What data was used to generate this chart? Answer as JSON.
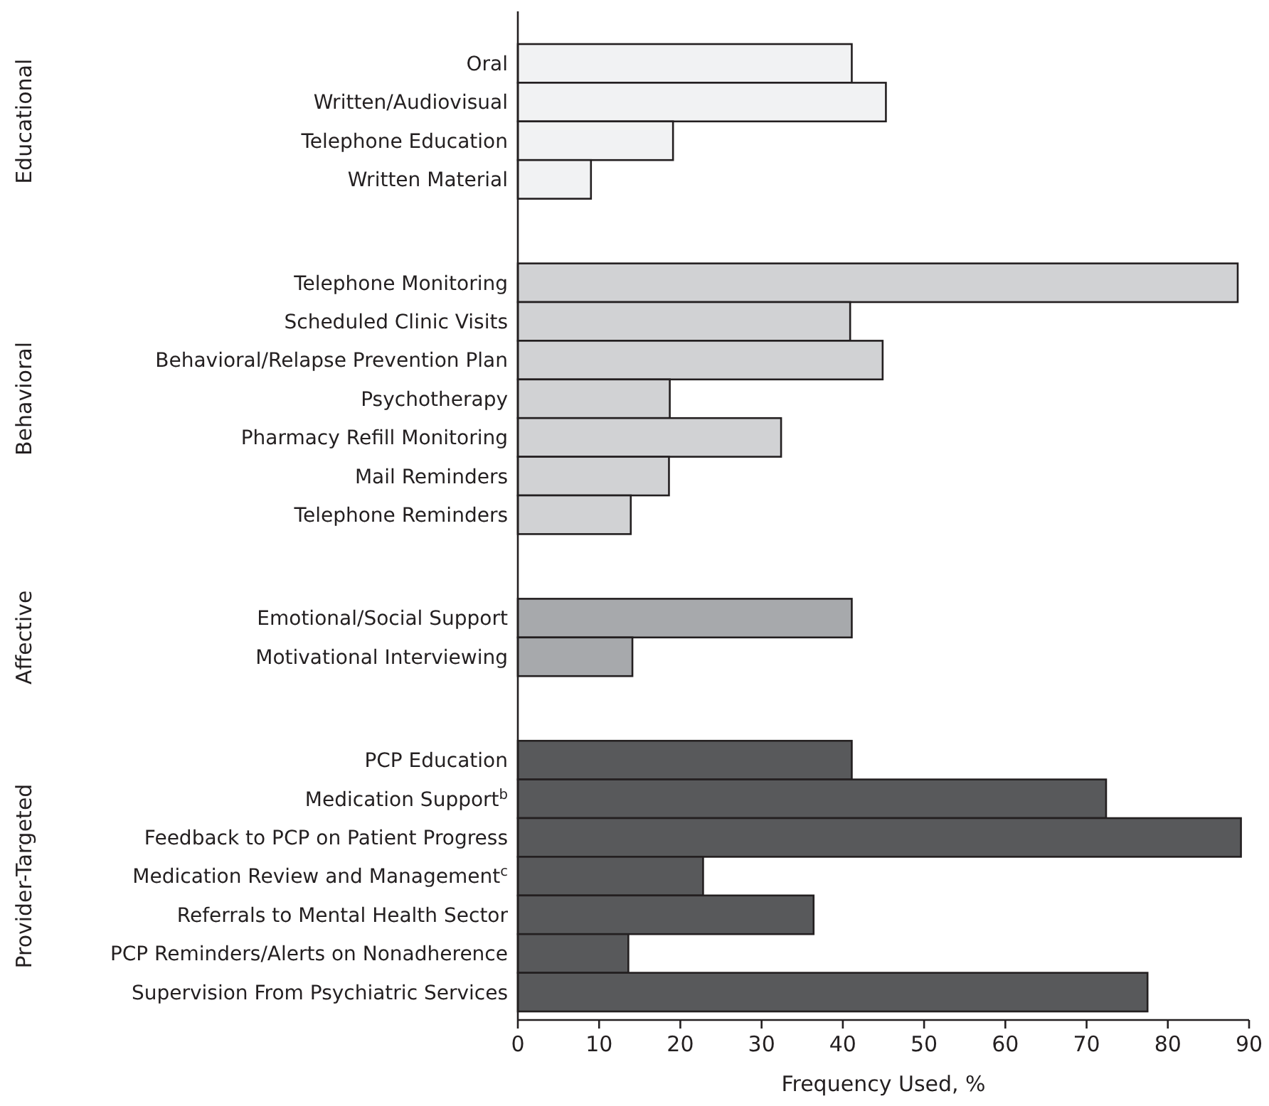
{
  "chart_data": [
    {
      "type": "bar",
      "orientation": "horizontal",
      "ylabel": "Educational",
      "categories": [
        "Oral",
        "Written/Audiovisual",
        "Telephone Education",
        "Written Material"
      ],
      "values": [
        41.1,
        45.3,
        19.1,
        9.0
      ],
      "color": "#f1f2f3",
      "xlim": [
        0,
        90
      ],
      "xticks": [
        0,
        10,
        20,
        30,
        40,
        50,
        60,
        70,
        80,
        90
      ],
      "tick_labels": "y"
    },
    {
      "type": "bar",
      "orientation": "horizontal",
      "ylabel": "Behavioral",
      "categories": [
        "Telephone Monitoring",
        "Scheduled Clinic Visits",
        "Behavioral/Relapse Prevention Plan",
        "Psychotherapy",
        "Pharmacy Refill Monitoring",
        "Mail Reminders",
        "Telephone Reminders"
      ],
      "values": [
        88.6,
        40.9,
        44.9,
        18.7,
        32.4,
        18.6,
        13.9
      ],
      "color": "#d1d2d4",
      "xlim": [
        0,
        90
      ],
      "xticks": [
        0,
        10,
        20,
        30,
        40,
        50,
        60,
        70,
        80,
        90
      ],
      "tick_labels": "y"
    },
    {
      "type": "bar",
      "orientation": "horizontal",
      "ylabel": "Affective",
      "categories": [
        "Emotional/Social Support",
        "Motivational Interviewing"
      ],
      "values": [
        41.1,
        14.1
      ],
      "color": "#a7a9ac",
      "xlim": [
        0,
        90
      ],
      "xticks": [
        0,
        10,
        20,
        30,
        40,
        50,
        60,
        70,
        80,
        90
      ],
      "tick_labels": "y"
    },
    {
      "type": "bar",
      "orientation": "horizontal",
      "ylabel": "Provider-Targeted",
      "xlabel": "Frequency Used, %",
      "categories": [
        "PCP Education",
        "Medication Support$^{b}$",
        "Feedback to PCP on Patient Progress",
        "Medication Review and Management$^{c}$",
        "Referrals to Mental Health Sector",
        "PCP Reminders/Alerts on Nonadherence",
        "Supervision From Psychiatric Services"
      ],
      "values": [
        41.1,
        72.4,
        89.0,
        22.8,
        36.4,
        13.6,
        77.5
      ],
      "color": "#58595b",
      "xlim": [
        0,
        90
      ],
      "xticks": [
        0,
        10,
        20,
        30,
        40,
        50,
        60,
        70,
        80,
        90
      ]
    }
  ]
}
